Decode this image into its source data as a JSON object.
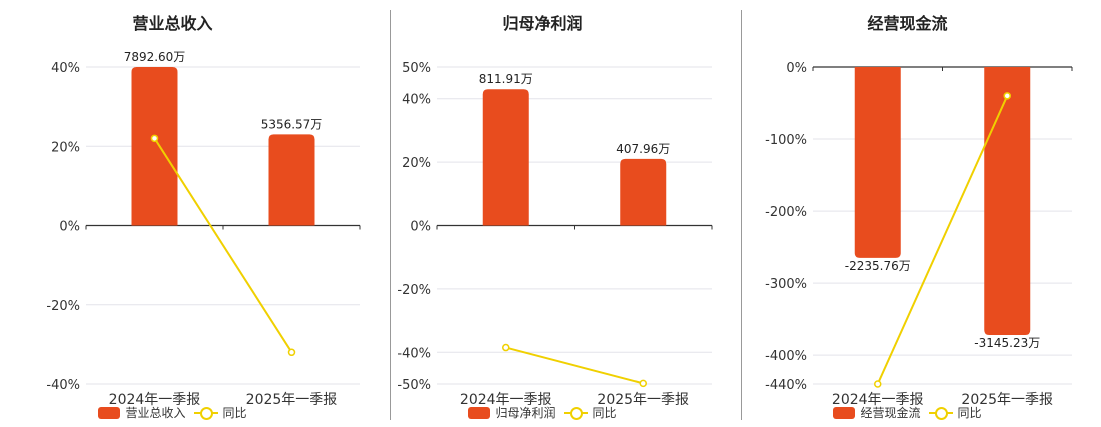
{
  "colors": {
    "bar": "#e84c1e",
    "line": "#f0d000",
    "grid": "#e3e3ea",
    "axis": "#333333"
  },
  "chart_data": [
    {
      "type": "bar",
      "title": "营业总收入",
      "categories": [
        "2024年一季报",
        "2025年一季报"
      ],
      "ylim": [
        -40,
        40
      ],
      "yticks": [
        -40,
        -20,
        0,
        20,
        40
      ],
      "ytick_labels": [
        "-40%",
        "-20%",
        "0%",
        "20%",
        "40%"
      ],
      "series": [
        {
          "name": "营业总收入",
          "kind": "bar",
          "values": [
            40,
            23
          ],
          "labels": [
            "7892.60万",
            "5356.57万"
          ]
        },
        {
          "name": "同比",
          "kind": "line",
          "values": [
            22,
            -32
          ]
        }
      ],
      "legend": "bottom",
      "grid": true
    },
    {
      "type": "bar",
      "title": "归母净利润",
      "categories": [
        "2024年一季报",
        "2025年一季报"
      ],
      "ylim": [
        -50,
        50
      ],
      "yticks": [
        -50,
        -40,
        -20,
        0,
        20,
        40,
        50
      ],
      "ytick_labels": [
        "-50%",
        "-40%",
        "-20%",
        "0%",
        "20%",
        "40%",
        "50%"
      ],
      "series": [
        {
          "name": "归母净利润",
          "kind": "bar",
          "values": [
            43,
            21
          ],
          "labels": [
            "811.91万",
            "407.96万"
          ]
        },
        {
          "name": "同比",
          "kind": "line",
          "values": [
            -38.5,
            -49.8
          ]
        }
      ],
      "legend": "bottom",
      "grid": true
    },
    {
      "type": "bar",
      "title": "经营现金流",
      "categories": [
        "2024年一季报",
        "2025年一季报"
      ],
      "ylim": [
        -440,
        0
      ],
      "yticks": [
        -440,
        -400,
        -300,
        -200,
        -100,
        0
      ],
      "ytick_labels": [
        "-440%",
        "-400%",
        "-300%",
        "-200%",
        "-100%",
        "0%"
      ],
      "series": [
        {
          "name": "经营现金流",
          "kind": "bar",
          "values": [
            -265,
            -372
          ],
          "labels": [
            "-2235.76万",
            "-3145.23万"
          ]
        },
        {
          "name": "同比",
          "kind": "line",
          "values": [
            -440,
            -40
          ]
        }
      ],
      "legend": "bottom",
      "grid": true
    }
  ]
}
